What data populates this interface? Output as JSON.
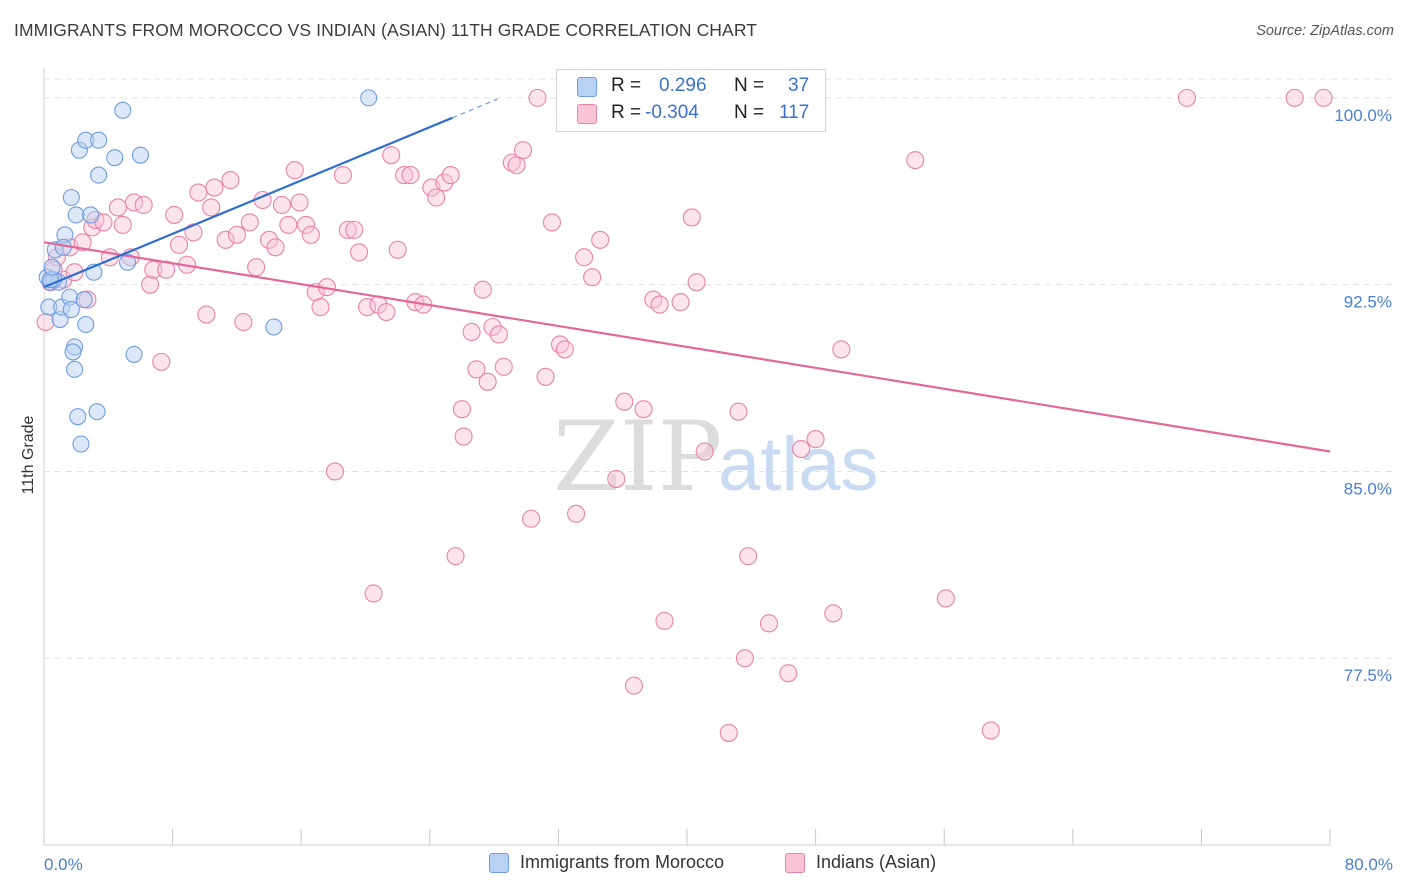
{
  "title": "IMMIGRANTS FROM MOROCCO VS INDIAN (ASIAN) 11TH GRADE CORRELATION CHART",
  "source": "Source: ZipAtlas.com",
  "watermark": {
    "zip": "ZIP",
    "atlas": "atlas"
  },
  "stats": [
    {
      "r_label": "R =",
      "r_value": "0.296",
      "n_label": "N =",
      "n_value": "37"
    },
    {
      "r_label": "R =",
      "r_value": "-0.304",
      "n_label": "N =",
      "n_value": "117"
    }
  ],
  "legend": [
    "Immigrants from Morocco",
    "Indians (Asian)"
  ],
  "chart_data": {
    "type": "scatter",
    "title": "IMMIGRANTS FROM MOROCCO VS INDIAN (ASIAN) 11TH GRADE CORRELATION CHART",
    "xlabel": "",
    "ylabel": "11th Grade",
    "xlim": [
      0,
      80
    ],
    "ylim": [
      70.0,
      101.2
    ],
    "x_tick_labels": [
      "0.0%",
      "80.0%"
    ],
    "y_ticks": [
      100.0,
      92.5,
      85.0,
      77.5
    ],
    "y_tick_labels": [
      "100.0%",
      "92.5%",
      "85.0%",
      "77.5%"
    ],
    "grid": true,
    "colors": {
      "series1": "#6f9de0",
      "series1_line": "#2f6fcc",
      "series2": "#e883a8",
      "series2_line": "#e2689a",
      "axis_text": "#4a7fd1"
    },
    "series": [
      {
        "name": "Immigrants from Morocco",
        "r": 0.296,
        "n": 37,
        "trend": {
          "x0": 0.0,
          "y0": 92.4,
          "x1": 25.4,
          "y1": 99.2,
          "dash_to_x": 28.2
        },
        "points": [
          [
            0.2,
            92.8
          ],
          [
            0.4,
            92.6
          ],
          [
            0.3,
            91.6
          ],
          [
            0.7,
            93.9
          ],
          [
            0.9,
            92.6
          ],
          [
            0.6,
            92.7
          ],
          [
            1.0,
            91.1
          ],
          [
            1.1,
            91.6
          ],
          [
            1.3,
            94.5
          ],
          [
            1.2,
            94.0
          ],
          [
            1.6,
            92.0
          ],
          [
            1.7,
            91.5
          ],
          [
            1.7,
            96.0
          ],
          [
            1.9,
            90.0
          ],
          [
            1.8,
            89.8
          ],
          [
            1.9,
            89.1
          ],
          [
            2.0,
            95.3
          ],
          [
            2.1,
            87.2
          ],
          [
            2.2,
            97.9
          ],
          [
            2.3,
            86.1
          ],
          [
            2.5,
            91.9
          ],
          [
            2.6,
            90.9
          ],
          [
            2.6,
            98.3
          ],
          [
            2.9,
            95.3
          ],
          [
            3.1,
            93.0
          ],
          [
            3.3,
            87.4
          ],
          [
            3.4,
            98.3
          ],
          [
            3.4,
            96.9
          ],
          [
            4.4,
            97.6
          ],
          [
            4.9,
            99.5
          ],
          [
            5.2,
            93.4
          ],
          [
            5.6,
            89.7
          ],
          [
            6.0,
            97.7
          ],
          [
            14.3,
            90.8
          ],
          [
            20.2,
            100.0
          ],
          [
            0.4,
            92.7
          ],
          [
            0.5,
            93.2
          ]
        ]
      },
      {
        "name": "Indians (Asian)",
        "r": -0.304,
        "n": 117,
        "trend": {
          "x0": 0.0,
          "y0": 94.2,
          "x1": 80.0,
          "y1": 85.8
        },
        "points": [
          [
            0.1,
            91.0
          ],
          [
            0.4,
            92.6
          ],
          [
            0.8,
            93.6
          ],
          [
            1.2,
            92.7
          ],
          [
            1.6,
            94.0
          ],
          [
            1.9,
            93.0
          ],
          [
            2.4,
            94.2
          ],
          [
            2.7,
            91.9
          ],
          [
            3.0,
            94.8
          ],
          [
            3.2,
            95.1
          ],
          [
            3.7,
            95.0
          ],
          [
            4.1,
            93.6
          ],
          [
            4.6,
            95.6
          ],
          [
            4.9,
            94.9
          ],
          [
            5.4,
            93.6
          ],
          [
            5.6,
            95.8
          ],
          [
            6.2,
            95.7
          ],
          [
            6.6,
            92.5
          ],
          [
            6.8,
            93.1
          ],
          [
            7.3,
            89.4
          ],
          [
            7.6,
            93.1
          ],
          [
            8.1,
            95.3
          ],
          [
            8.4,
            94.1
          ],
          [
            8.9,
            93.3
          ],
          [
            9.3,
            94.6
          ],
          [
            9.6,
            96.2
          ],
          [
            10.1,
            91.3
          ],
          [
            10.4,
            95.6
          ],
          [
            10.6,
            96.4
          ],
          [
            11.3,
            94.3
          ],
          [
            11.6,
            96.7
          ],
          [
            12.0,
            94.5
          ],
          [
            12.4,
            91.0
          ],
          [
            12.8,
            95.0
          ],
          [
            13.2,
            93.2
          ],
          [
            13.6,
            95.9
          ],
          [
            14.0,
            94.3
          ],
          [
            14.4,
            94.0
          ],
          [
            14.8,
            95.7
          ],
          [
            15.2,
            94.9
          ],
          [
            15.6,
            97.1
          ],
          [
            15.9,
            95.8
          ],
          [
            16.3,
            94.9
          ],
          [
            16.6,
            94.5
          ],
          [
            16.9,
            92.2
          ],
          [
            17.2,
            91.6
          ],
          [
            17.6,
            92.4
          ],
          [
            18.1,
            85.0
          ],
          [
            18.6,
            96.9
          ],
          [
            18.9,
            94.7
          ],
          [
            19.3,
            94.7
          ],
          [
            19.6,
            93.8
          ],
          [
            20.1,
            91.6
          ],
          [
            20.5,
            80.1
          ],
          [
            20.8,
            91.7
          ],
          [
            21.3,
            91.4
          ],
          [
            21.6,
            97.7
          ],
          [
            22.0,
            93.9
          ],
          [
            22.4,
            96.9
          ],
          [
            22.8,
            96.9
          ],
          [
            23.1,
            91.8
          ],
          [
            23.6,
            91.7
          ],
          [
            24.1,
            96.4
          ],
          [
            24.4,
            96.0
          ],
          [
            24.9,
            96.6
          ],
          [
            25.3,
            96.9
          ],
          [
            25.6,
            81.6
          ],
          [
            26.0,
            87.5
          ],
          [
            26.1,
            86.4
          ],
          [
            26.6,
            90.6
          ],
          [
            26.9,
            89.1
          ],
          [
            27.3,
            92.3
          ],
          [
            27.6,
            88.6
          ],
          [
            27.9,
            90.8
          ],
          [
            28.3,
            90.5
          ],
          [
            28.6,
            89.2
          ],
          [
            29.1,
            97.4
          ],
          [
            29.4,
            97.3
          ],
          [
            29.8,
            97.9
          ],
          [
            30.3,
            83.1
          ],
          [
            30.7,
            100.0
          ],
          [
            31.2,
            88.8
          ],
          [
            31.6,
            95.0
          ],
          [
            32.1,
            90.1
          ],
          [
            32.4,
            89.9
          ],
          [
            33.1,
            83.3
          ],
          [
            33.6,
            93.6
          ],
          [
            34.1,
            92.8
          ],
          [
            34.6,
            94.3
          ],
          [
            35.6,
            84.7
          ],
          [
            36.1,
            87.8
          ],
          [
            36.7,
            76.4
          ],
          [
            37.3,
            87.5
          ],
          [
            37.9,
            91.9
          ],
          [
            38.3,
            91.7
          ],
          [
            38.6,
            79.0
          ],
          [
            39.6,
            91.8
          ],
          [
            40.3,
            95.2
          ],
          [
            40.6,
            92.6
          ],
          [
            41.1,
            85.8
          ],
          [
            42.6,
            74.5
          ],
          [
            43.2,
            87.4
          ],
          [
            43.8,
            81.6
          ],
          [
            43.6,
            77.5
          ],
          [
            45.1,
            78.9
          ],
          [
            46.3,
            76.9
          ],
          [
            47.1,
            85.9
          ],
          [
            48.0,
            86.3
          ],
          [
            49.1,
            79.3
          ],
          [
            49.6,
            89.9
          ],
          [
            54.2,
            97.5
          ],
          [
            56.1,
            79.9
          ],
          [
            58.9,
            74.6
          ],
          [
            71.1,
            100.0
          ],
          [
            77.8,
            100.0
          ],
          [
            79.6,
            100.0
          ],
          [
            0.6,
            93.1
          ]
        ]
      }
    ]
  }
}
